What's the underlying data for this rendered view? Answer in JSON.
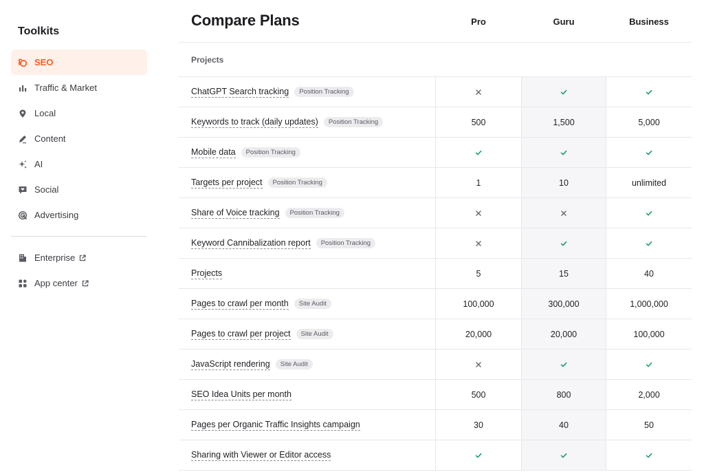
{
  "sidebar": {
    "title": "Toolkits",
    "items": [
      {
        "label": "SEO",
        "icon": "seo-icon",
        "active": true
      },
      {
        "label": "Traffic & Market",
        "icon": "bar-chart-icon"
      },
      {
        "label": "Local",
        "icon": "map-pin-icon"
      },
      {
        "label": "Content",
        "icon": "pen-icon"
      },
      {
        "label": "AI",
        "icon": "sparkles-icon"
      },
      {
        "label": "Social",
        "icon": "heart-chat-icon"
      },
      {
        "label": "Advertising",
        "icon": "target-icon"
      }
    ],
    "secondary": [
      {
        "label": "Enterprise",
        "icon": "building-icon",
        "external": true
      },
      {
        "label": "App center",
        "icon": "grid-icon",
        "external": true
      }
    ],
    "accent_color": "#ff5a1f"
  },
  "main": {
    "title": "Compare Plans",
    "plans": [
      "Pro",
      "Guru",
      "Business"
    ],
    "section": "Projects",
    "rows": [
      {
        "feature": "ChatGPT Search tracking",
        "tag": "Position Tracking",
        "values": [
          "cross",
          "check",
          "check"
        ]
      },
      {
        "feature": "Keywords to track (daily updates)",
        "tag": "Position Tracking",
        "values": [
          "500",
          "1,500",
          "5,000"
        ]
      },
      {
        "feature": "Mobile data",
        "tag": "Position Tracking",
        "values": [
          "check",
          "check",
          "check"
        ]
      },
      {
        "feature": "Targets per project",
        "tag": "Position Tracking",
        "values": [
          "1",
          "10",
          "unlimited"
        ]
      },
      {
        "feature": "Share of Voice tracking",
        "tag": "Position Tracking",
        "values": [
          "cross",
          "cross",
          "check"
        ]
      },
      {
        "feature": "Keyword Cannibalization report",
        "tag": "Position Tracking",
        "values": [
          "cross",
          "check",
          "check"
        ]
      },
      {
        "feature": "Projects",
        "tag": "",
        "values": [
          "5",
          "15",
          "40"
        ]
      },
      {
        "feature": "Pages to crawl per month",
        "tag": "Site Audit",
        "values": [
          "100,000",
          "300,000",
          "1,000,000"
        ]
      },
      {
        "feature": "Pages to crawl per project",
        "tag": "Site Audit",
        "values": [
          "20,000",
          "20,000",
          "100,000"
        ]
      },
      {
        "feature": "JavaScript rendering",
        "tag": "Site Audit",
        "values": [
          "cross",
          "check",
          "check"
        ]
      },
      {
        "feature": "SEO Idea Units per month",
        "tag": "",
        "values": [
          "500",
          "800",
          "2,000"
        ]
      },
      {
        "feature": "Pages per Organic Traffic Insights campaign",
        "tag": "",
        "values": [
          "30",
          "40",
          "50"
        ]
      },
      {
        "feature": "Sharing with Viewer or Editor access",
        "tag": "",
        "values": [
          "check",
          "check",
          "check"
        ]
      }
    ],
    "colors": {
      "check": "#1f9e6a",
      "cross": "#6a6b72",
      "guru_column_bg": "#f6f6f8"
    }
  }
}
